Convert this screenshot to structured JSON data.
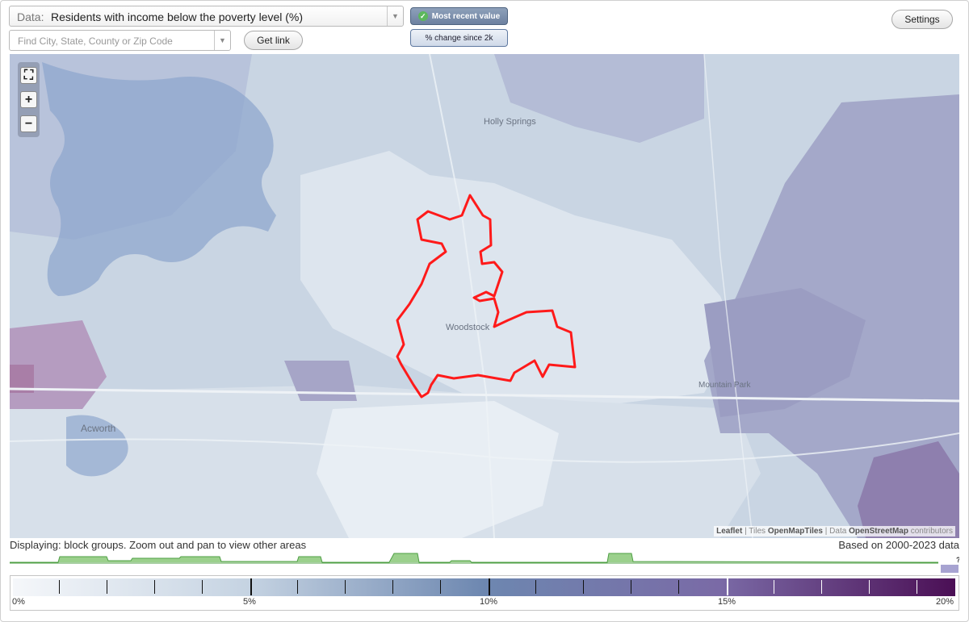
{
  "data_select": {
    "prefix": "Data:",
    "value": "Residents with income below the poverty level (%)"
  },
  "search": {
    "placeholder": "Find City, State, County or Zip Code",
    "value": ""
  },
  "buttons": {
    "get_link": "Get link",
    "settings": "Settings"
  },
  "modes": {
    "most_recent": "Most recent value",
    "pct_change": "% change since 2k",
    "selected": "most_recent"
  },
  "map": {
    "place_labels": {
      "holly_springs": "Holly Springs",
      "woodstock": "Woodstock",
      "acworth": "Acworth",
      "mountain_park": "Mountain Park"
    },
    "attribution": {
      "leaflet": "Leaflet",
      "sep1": " | Tiles ",
      "tiles": "OpenMapTiles",
      "sep2": " | Data ",
      "data": "OpenStreetMap",
      "tail": " contributors"
    },
    "boundary_color": "#ff1a1a"
  },
  "footer": {
    "displaying": "Displaying: block groups. Zoom out and pan to view other areas",
    "based_on": "Based on 2000-2023 data"
  },
  "legend": {
    "labels": [
      "0%",
      "5%",
      "10%",
      "15%",
      "20%"
    ],
    "unknown_marker": "?",
    "colors": {
      "low": "#f5f7fa",
      "mid": "#6d87b0",
      "high": "#4b0f55"
    }
  }
}
